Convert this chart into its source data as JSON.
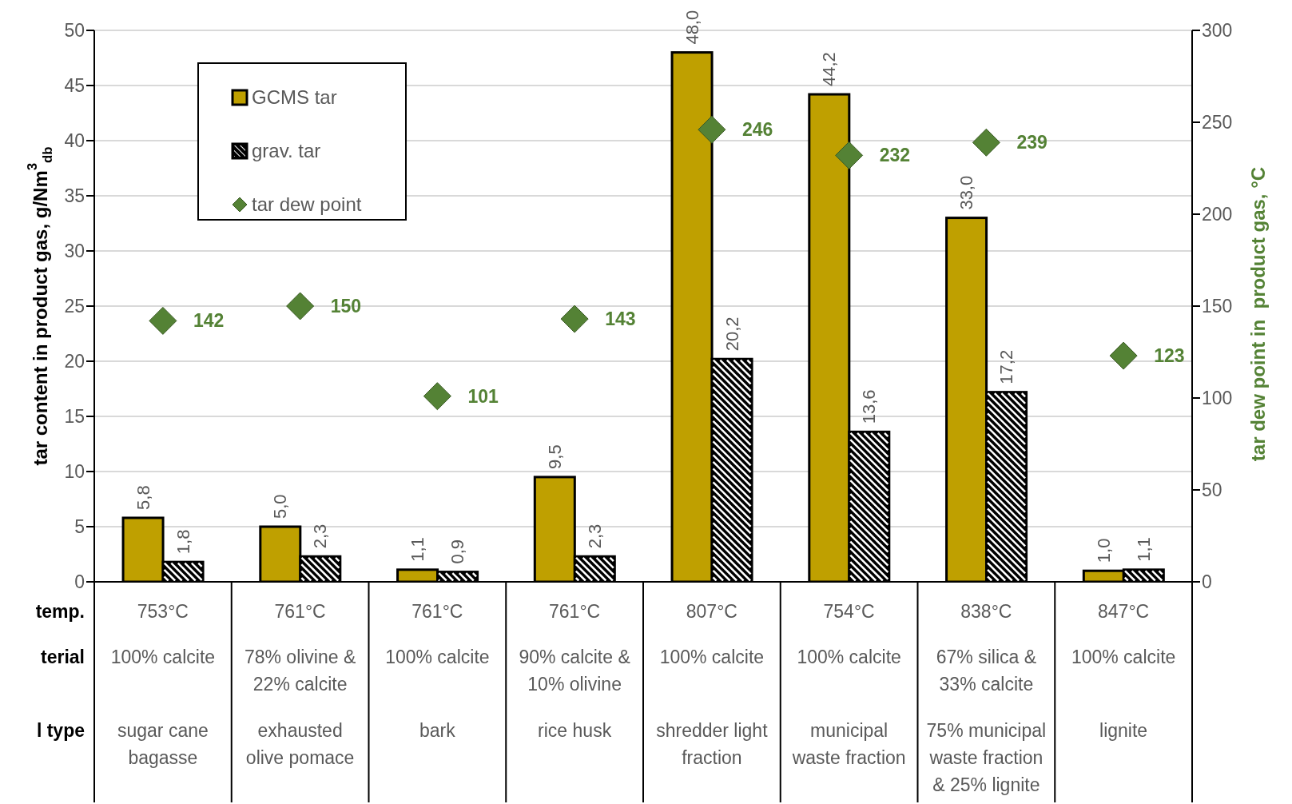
{
  "chart_data": {
    "categories": [
      "753°C\n\n100% calcite\n\nsugar cane\nbagasse",
      "761°C\n\n78% olivine &\n22% calcite\n\nexhausted\nolive pomace",
      "761°C\n\n100% calcite\n\nbark",
      "761°C\n\n90% calcite &\n10% olivine\n\nrice husk",
      "807°C\n\n100% calcite\n\nshredder light\nfraction",
      "754°C\n\n100% calcite\n\nmunicipal\nwaste fraction",
      "838°C\n\n67% silica &\n33% calcite\n\n75% municipal\nwaste fraction\n& 25% lignite",
      "847°C\n\n100% calcite\n\nlignite"
    ],
    "series": [
      {
        "name": "GCMS tar",
        "color": "#bfa000",
        "values": [
          5.8,
          5.0,
          1.1,
          9.5,
          48.0,
          44.2,
          33.0,
          1.0
        ],
        "value_labels": [
          "5,8",
          "5,0",
          "1,1",
          "9,5",
          "48,0",
          "44,2",
          "33,0",
          "1,0"
        ]
      },
      {
        "name": "grav. tar",
        "color": "#000000",
        "values": [
          1.8,
          2.3,
          0.9,
          2.3,
          20.2,
          13.6,
          17.2,
          1.1
        ],
        "value_labels": [
          "1,8",
          "2,3",
          "0,9",
          "2,3",
          "20,2",
          "13,6",
          "17,2",
          "1,1"
        ]
      },
      {
        "name": "tar dew point",
        "type": "scatter",
        "axis": "y2",
        "color": "#548235",
        "marker": "diamond",
        "values": [
          142,
          150,
          101,
          143,
          246,
          232,
          239,
          123
        ],
        "value_labels": [
          "142",
          "150",
          "101",
          "143",
          "246",
          "232",
          "239",
          "123"
        ]
      }
    ],
    "ylabel": "tar content in product gas, g/Nm$^{3}$$_{db}$",
    "y2label": "tar dew point in  product gas, °C",
    "ylim": [
      0,
      50
    ],
    "yticks": [
      0,
      5,
      10,
      15,
      20,
      25,
      30,
      35,
      40,
      45,
      50
    ],
    "y2lim": [
      0,
      300
    ],
    "y2ticks": [
      0,
      50,
      100,
      150,
      200,
      250,
      300
    ],
    "type": "bar",
    "grid": "y",
    "legend": "top left",
    "annotations": [
      "temp.",
      "terial",
      "l type"
    ]
  }
}
